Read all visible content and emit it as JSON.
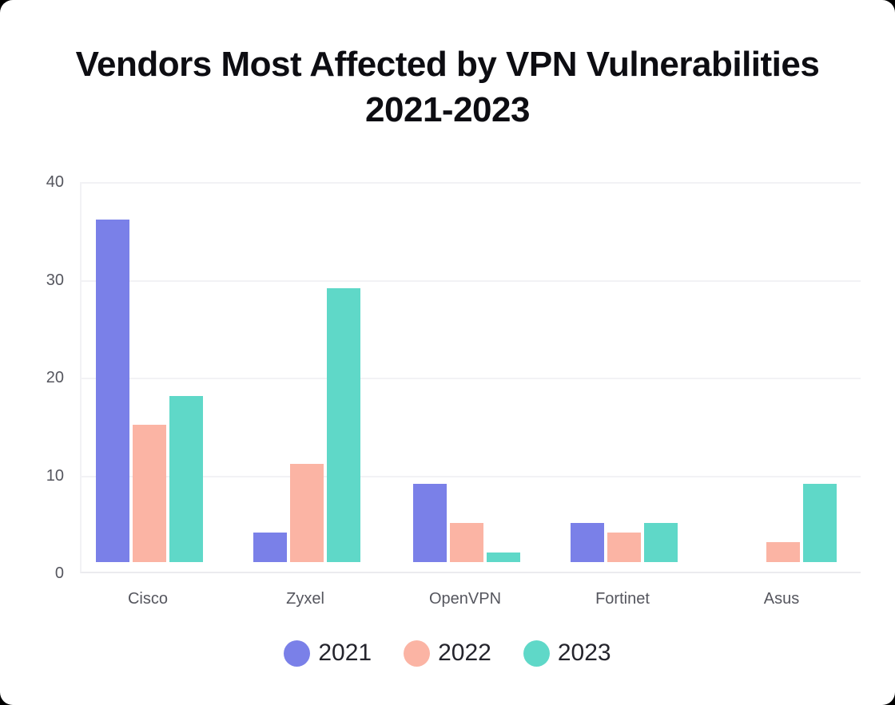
{
  "title": {
    "line1": "Vendors Most Affected by VPN Vulnerabilities",
    "line2": "2021-2023"
  },
  "chart_data": {
    "type": "bar",
    "title": "Vendors Most Affected by VPN Vulnerabilities 2021-2023",
    "categories": [
      "Cisco",
      "Zyxel",
      "OpenVPN",
      "Fortinet",
      "Asus"
    ],
    "series": [
      {
        "name": "2021",
        "color": "#7a80e8",
        "values": [
          36,
          4,
          9,
          5,
          0
        ]
      },
      {
        "name": "2022",
        "color": "#fbb4a4",
        "values": [
          15,
          11,
          5,
          4,
          3
        ]
      },
      {
        "name": "2023",
        "color": "#5fd8c8",
        "values": [
          18,
          29,
          2,
          5,
          9
        ]
      }
    ],
    "xlabel": "",
    "ylabel": "",
    "ylim": [
      0,
      40
    ],
    "yticks": [
      0,
      10,
      20,
      30,
      40
    ],
    "grid": true,
    "legend_position": "bottom"
  },
  "legend": {
    "items": [
      "2021",
      "2022",
      "2023"
    ]
  },
  "colors": {
    "page_background": "#000000",
    "card_background": "#ffffff",
    "title_text": "#0d0d12",
    "axis_text": "#55565e",
    "legend_text": "#24242c",
    "gridline": "#f2f2f5",
    "axis_line": "#ebebef",
    "series_2021": "#7a80e8",
    "series_2022": "#fbb4a4",
    "series_2023": "#5fd8c8"
  }
}
